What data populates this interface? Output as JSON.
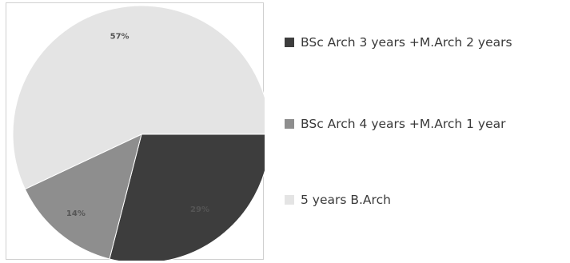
{
  "chart_data": {
    "type": "pie",
    "title": "",
    "slices": [
      {
        "label": "BSc Arch 3 years +M.Arch 2 years",
        "value": 29,
        "display": "29%",
        "color": "#3d3d3d"
      },
      {
        "label": "BSc Arch 4 years +M.Arch 1 year",
        "value": 14,
        "display": "14%",
        "color": "#8e8e8e"
      },
      {
        "label": "5 years B.Arch",
        "value": 57,
        "display": "57%",
        "color": "#e4e4e4"
      }
    ],
    "legend_position": "right"
  }
}
